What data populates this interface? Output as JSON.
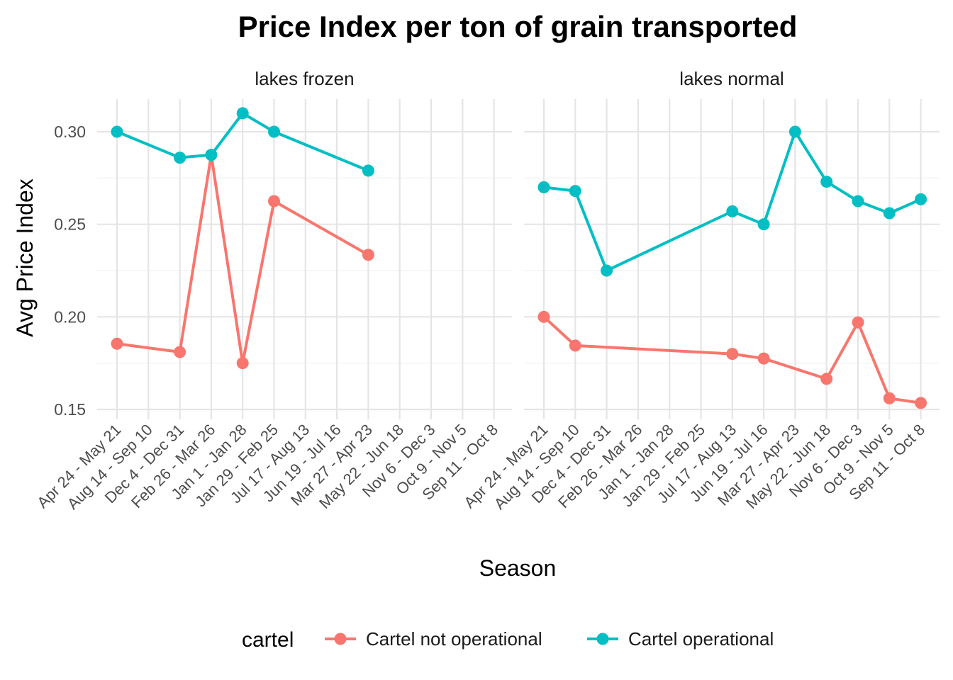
{
  "chart_data": {
    "type": "line",
    "title": "Price Index per ton of grain transported",
    "xlabel": "Season",
    "ylabel": "Avg Price Index",
    "categories": [
      "Apr 24 - May 21",
      "Aug 14 - Sep 10",
      "Dec  4 - Dec 31",
      "Feb 26 - Mar 26",
      "Jan  1 - Jan 28",
      "Jan 29 - Feb 25",
      "Jul 17 - Aug 13",
      "Jun 19 - Jul 16",
      "Mar 27 - Apr 23",
      "May 22 - Jun 18",
      "Nov  6 - Dec  3",
      "Oct  9 - Nov  5",
      "Sep 11 - Oct  8"
    ],
    "yticks": [
      "0.15",
      "0.20",
      "0.25",
      "0.30"
    ],
    "ylim": [
      0.143,
      0.32
    ],
    "grid": true,
    "legend": {
      "title": "cartel",
      "position": "bottom",
      "entries": [
        {
          "name": "Cartel not operational",
          "color": "#F8766D"
        },
        {
          "name": "Cartel operational",
          "color": "#00BFC4"
        }
      ]
    },
    "panels": [
      {
        "strip": "lakes frozen",
        "series": [
          {
            "name": "Cartel not operational",
            "color": "#F8766D",
            "points": [
              [
                "Apr 24 - May 21",
                0.1855
              ],
              [
                "Dec  4 - Dec 31",
                0.181
              ],
              [
                "Feb 26 - Mar 26",
                0.2875
              ],
              [
                "Jan  1 - Jan 28",
                0.175
              ],
              [
                "Jan 29 - Feb 25",
                0.2625
              ],
              [
                "Mar 27 - Apr 23",
                0.2335
              ]
            ]
          },
          {
            "name": "Cartel operational",
            "color": "#00BFC4",
            "points": [
              [
                "Apr 24 - May 21",
                0.3
              ],
              [
                "Dec  4 - Dec 31",
                0.286
              ],
              [
                "Feb 26 - Mar 26",
                0.2875
              ],
              [
                "Jan  1 - Jan 28",
                0.31
              ],
              [
                "Jan 29 - Feb 25",
                0.3
              ],
              [
                "Mar 27 - Apr 23",
                0.279
              ]
            ]
          }
        ]
      },
      {
        "strip": "lakes normal",
        "series": [
          {
            "name": "Cartel not operational",
            "color": "#F8766D",
            "points": [
              [
                "Apr 24 - May 21",
                0.2
              ],
              [
                "Aug 14 - Sep 10",
                0.1845
              ],
              [
                "Jul 17 - Aug 13",
                0.18
              ],
              [
                "Jun 19 - Jul 16",
                0.1775
              ],
              [
                "May 22 - Jun 18",
                0.1665
              ],
              [
                "Nov  6 - Dec  3",
                0.197
              ],
              [
                "Oct  9 - Nov  5",
                0.156
              ],
              [
                "Sep 11 - Oct  8",
                0.1535
              ]
            ]
          },
          {
            "name": "Cartel operational",
            "color": "#00BFC4",
            "points": [
              [
                "Apr 24 - May 21",
                0.27
              ],
              [
                "Aug 14 - Sep 10",
                0.268
              ],
              [
                "Dec  4 - Dec 31",
                0.225
              ],
              [
                "Jul 17 - Aug 13",
                0.257
              ],
              [
                "Jun 19 - Jul 16",
                0.25
              ],
              [
                "Mar 27 - Apr 23",
                0.3
              ],
              [
                "May 22 - Jun 18",
                0.273
              ],
              [
                "Nov  6 - Dec  3",
                0.2625
              ],
              [
                "Oct  9 - Nov  5",
                0.256
              ],
              [
                "Sep 11 - Oct  8",
                0.2635
              ]
            ]
          }
        ]
      }
    ]
  }
}
